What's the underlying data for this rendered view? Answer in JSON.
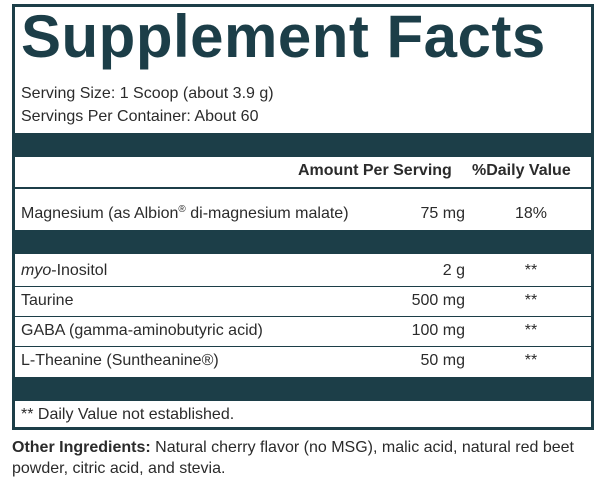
{
  "title": "Supplement Facts",
  "serving_size": "Serving Size: 1 Scoop (about 3.9 g)",
  "servings_per_container": "Servings Per Container: About 60",
  "header": {
    "amount_per_serving": "Amount Per Serving",
    "daily_value": "%Daily Value"
  },
  "colors": {
    "accent": "#1c3e48",
    "text": "#2b2b2b"
  },
  "primary_nutrients": [
    {
      "name_pre": "Magnesium (as Albion",
      "mark": "®",
      "name_post": " di-magnesium malate)",
      "amount": "75 mg",
      "daily_value": "18%"
    }
  ],
  "other_nutrients": [
    {
      "name_italic": "myo",
      "name": "-Inositol",
      "amount": "2 g",
      "daily_value": "**"
    },
    {
      "name": "Taurine",
      "amount": "500 mg",
      "daily_value": "**"
    },
    {
      "name": "GABA (gamma-aminobutyric acid)",
      "amount": "100 mg",
      "daily_value": "**"
    },
    {
      "name": "L-Theanine (Suntheanine®)",
      "amount": "50 mg",
      "daily_value": "**"
    }
  ],
  "footnote": "** Daily Value not established.",
  "other_ingredients": {
    "label": "Other Ingredients:",
    "text": " Natural cherry flavor (no MSG), malic acid, natural red beet powder, citric acid, and stevia."
  }
}
